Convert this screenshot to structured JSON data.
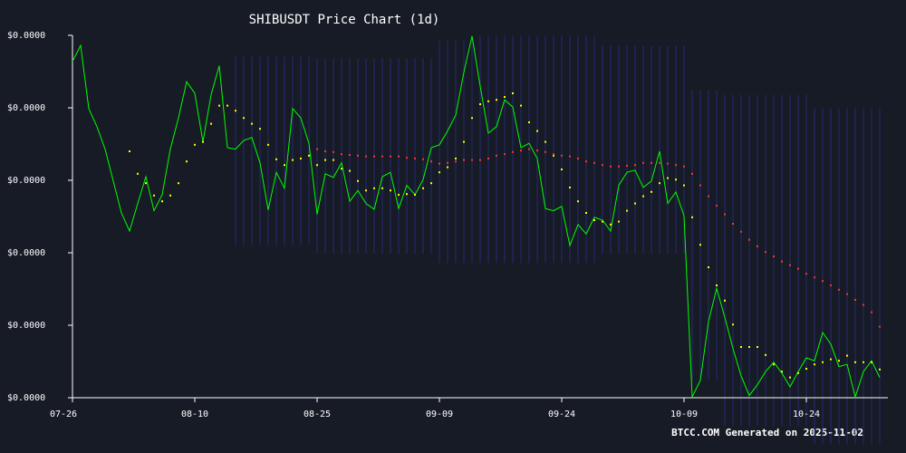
{
  "chart_data": {
    "type": "line",
    "title": "SHIBUSDT Price Chart (1d)",
    "footer": "BTCC.COM Generated on 2025-11-02",
    "categories": [
      "07-26",
      null,
      null,
      null,
      null,
      null,
      null,
      null,
      null,
      null,
      null,
      null,
      null,
      null,
      null,
      "08-10",
      null,
      null,
      null,
      null,
      null,
      null,
      null,
      null,
      null,
      null,
      null,
      null,
      null,
      null,
      "08-25",
      null,
      null,
      null,
      null,
      null,
      null,
      null,
      null,
      null,
      null,
      null,
      null,
      null,
      null,
      "09-09",
      null,
      null,
      null,
      null,
      null,
      null,
      null,
      null,
      null,
      null,
      null,
      null,
      null,
      null,
      "09-24",
      null,
      null,
      null,
      null,
      null,
      null,
      null,
      null,
      null,
      null,
      null,
      null,
      null,
      null,
      "10-09",
      null,
      null,
      null,
      null,
      null,
      null,
      null,
      null,
      null,
      null,
      null,
      null,
      null,
      null,
      "10-24",
      null,
      null,
      null,
      null,
      null,
      null,
      null,
      null,
      null
    ],
    "ylim": [
      1e-05,
      1.5e-05
    ],
    "yticks": [
      {
        "value": 1e-05,
        "label": "$0.0000"
      },
      {
        "value": 1.1e-05,
        "label": "$0.0000"
      },
      {
        "value": 1.2e-05,
        "label": "$0.0000"
      },
      {
        "value": 1.3e-05,
        "label": "$0.0000"
      },
      {
        "value": 1.4e-05,
        "label": "$0.0000"
      },
      {
        "value": 1.5e-05,
        "label": "$0.0000"
      }
    ],
    "background": "#171b26",
    "band": {
      "color": "#2b2f8f",
      "upper": [
        null,
        null,
        null,
        null,
        null,
        null,
        null,
        null,
        null,
        null,
        null,
        null,
        null,
        null,
        null,
        null,
        null,
        null,
        null,
        null,
        1.471e-05,
        1.471e-05,
        1.471e-05,
        1.471e-05,
        1.471e-05,
        1.471e-05,
        1.471e-05,
        1.471e-05,
        1.471e-05,
        1.471e-05,
        1.468e-05,
        1.468e-05,
        1.468e-05,
        1.468e-05,
        1.468e-05,
        1.468e-05,
        1.468e-05,
        1.468e-05,
        1.468e-05,
        1.468e-05,
        1.468e-05,
        1.468e-05,
        1.468e-05,
        1.468e-05,
        1.468e-05,
        1.493e-05,
        1.493e-05,
        1.493e-05,
        1.493e-05,
        1.493e-05,
        1.499e-05,
        1.499e-05,
        1.499e-05,
        1.499e-05,
        1.499e-05,
        1.499e-05,
        1.499e-05,
        1.499e-05,
        1.499e-05,
        1.499e-05,
        1.499e-05,
        1.499e-05,
        1.499e-05,
        1.499e-05,
        1.499e-05,
        1.486e-05,
        1.486e-05,
        1.486e-05,
        1.486e-05,
        1.486e-05,
        1.486e-05,
        1.486e-05,
        1.486e-05,
        1.486e-05,
        1.486e-05,
        1.486e-05,
        1.424e-05,
        1.424e-05,
        1.424e-05,
        1.424e-05,
        1.418e-05,
        1.418e-05,
        1.418e-05,
        1.418e-05,
        1.418e-05,
        1.418e-05,
        1.418e-05,
        1.418e-05,
        1.418e-05,
        1.418e-05,
        1.418e-05,
        1.399e-05,
        1.399e-05,
        1.399e-05,
        1.399e-05,
        1.399e-05,
        1.399e-05,
        1.399e-05,
        1.399e-05,
        1.399e-05
      ],
      "lower": [
        null,
        null,
        null,
        null,
        null,
        null,
        null,
        null,
        null,
        null,
        null,
        null,
        null,
        null,
        null,
        null,
        null,
        null,
        null,
        null,
        1.211e-05,
        1.211e-05,
        1.211e-05,
        1.211e-05,
        1.211e-05,
        1.211e-05,
        1.211e-05,
        1.211e-05,
        1.211e-05,
        1.211e-05,
        1.199e-05,
        1.199e-05,
        1.199e-05,
        1.199e-05,
        1.199e-05,
        1.199e-05,
        1.199e-05,
        1.199e-05,
        1.199e-05,
        1.199e-05,
        1.199e-05,
        1.199e-05,
        1.199e-05,
        1.199e-05,
        1.199e-05,
        1.186e-05,
        1.186e-05,
        1.186e-05,
        1.186e-05,
        1.186e-05,
        1.186e-05,
        1.186e-05,
        1.186e-05,
        1.186e-05,
        1.186e-05,
        1.186e-05,
        1.186e-05,
        1.186e-05,
        1.186e-05,
        1.186e-05,
        1.186e-05,
        1.186e-05,
        1.186e-05,
        1.186e-05,
        1.186e-05,
        1.199e-05,
        1.199e-05,
        1.199e-05,
        1.199e-05,
        1.199e-05,
        1.199e-05,
        1.199e-05,
        1.199e-05,
        1.199e-05,
        1.199e-05,
        1.199e-05,
        1.024e-05,
        1.024e-05,
        1.024e-05,
        1.024e-05,
        9.61e-06,
        9.61e-06,
        9.61e-06,
        9.61e-06,
        9.61e-06,
        9.61e-06,
        9.61e-06,
        9.61e-06,
        9.61e-06,
        9.61e-06,
        9.61e-06,
        9.36e-06,
        9.36e-06,
        9.36e-06,
        9.36e-06,
        9.36e-06,
        9.36e-06,
        9.36e-06,
        9.36e-06,
        9.36e-06
      ]
    },
    "series": [
      {
        "color": "#00ff00",
        "style": "line",
        "values": [
          1.464e-05,
          1.486e-05,
          1.399e-05,
          1.374e-05,
          1.343e-05,
          1.299e-05,
          1.255e-05,
          1.23e-05,
          1.268e-05,
          1.305e-05,
          1.258e-05,
          1.28e-05,
          1.343e-05,
          1.386e-05,
          1.436e-05,
          1.42e-05,
          1.353e-05,
          1.418e-05,
          1.458e-05,
          1.345e-05,
          1.343e-05,
          1.355e-05,
          1.359e-05,
          1.324e-05,
          1.259e-05,
          1.311e-05,
          1.289e-05,
          1.399e-05,
          1.386e-05,
          1.351e-05,
          1.253e-05,
          1.309e-05,
          1.304e-05,
          1.324e-05,
          1.271e-05,
          1.286e-05,
          1.268e-05,
          1.26e-05,
          1.305e-05,
          1.311e-05,
          1.261e-05,
          1.293e-05,
          1.28e-05,
          1.301e-05,
          1.345e-05,
          1.349e-05,
          1.368e-05,
          1.39e-05,
          1.449e-05,
          1.499e-05,
          1.43e-05,
          1.365e-05,
          1.374e-05,
          1.411e-05,
          1.401e-05,
          1.345e-05,
          1.351e-05,
          1.33e-05,
          1.261e-05,
          1.258e-05,
          1.264e-05,
          1.21e-05,
          1.239e-05,
          1.226e-05,
          1.249e-05,
          1.245e-05,
          1.23e-05,
          1.293e-05,
          1.311e-05,
          1.314e-05,
          1.29e-05,
          1.299e-05,
          1.34e-05,
          1.268e-05,
          1.284e-05,
          1.251e-05,
          1.001e-05,
          1.024e-05,
          1.105e-05,
          1.151e-05,
          1.111e-05,
          1.068e-05,
          1.03e-05,
          1.003e-05,
          1.018e-05,
          1.036e-05,
          1.049e-05,
          1.034e-05,
          1.015e-05,
          1.036e-05,
          1.055e-05,
          1.051e-05,
          1.09e-05,
          1.074e-05,
          1.043e-05,
          1.046e-05,
          1.001e-05,
          1.036e-05,
          1.051e-05,
          1.028e-05
        ]
      },
      {
        "color": "#ffff00",
        "style": "dots",
        "values": [
          null,
          null,
          null,
          null,
          null,
          null,
          null,
          1.34e-05,
          1.309e-05,
          1.296e-05,
          1.279e-05,
          1.271e-05,
          1.279e-05,
          1.296e-05,
          1.326e-05,
          1.349e-05,
          1.353e-05,
          1.378e-05,
          1.403e-05,
          1.403e-05,
          1.396e-05,
          1.386e-05,
          1.378e-05,
          1.371e-05,
          1.349e-05,
          1.329e-05,
          1.321e-05,
          1.328e-05,
          1.33e-05,
          1.334e-05,
          1.321e-05,
          1.328e-05,
          1.328e-05,
          1.316e-05,
          1.313e-05,
          1.299e-05,
          1.286e-05,
          1.289e-05,
          1.289e-05,
          1.286e-05,
          1.28e-05,
          1.281e-05,
          1.28e-05,
          1.289e-05,
          1.296e-05,
          1.311e-05,
          1.318e-05,
          1.33e-05,
          1.353e-05,
          1.386e-05,
          1.405e-05,
          1.409e-05,
          1.411e-05,
          1.415e-05,
          1.42e-05,
          1.403e-05,
          1.38e-05,
          1.368e-05,
          1.353e-05,
          1.334e-05,
          1.315e-05,
          1.29e-05,
          1.271e-05,
          1.255e-05,
          1.245e-05,
          1.243e-05,
          1.239e-05,
          1.243e-05,
          1.258e-05,
          1.268e-05,
          1.278e-05,
          1.284e-05,
          1.296e-05,
          1.303e-05,
          1.301e-05,
          1.293e-05,
          1.249e-05,
          1.211e-05,
          1.18e-05,
          1.155e-05,
          1.134e-05,
          1.101e-05,
          1.07e-05,
          1.07e-05,
          1.07e-05,
          1.059e-05,
          1.046e-05,
          1.036e-05,
          1.028e-05,
          1.034e-05,
          1.04e-05,
          1.046e-05,
          1.049e-05,
          1.053e-05,
          1.051e-05,
          1.058e-05,
          1.049e-05,
          1.049e-05,
          1.049e-05,
          1.039e-05
        ]
      },
      {
        "color": "#ff3333",
        "style": "dots",
        "values": [
          null,
          null,
          null,
          null,
          null,
          null,
          null,
          null,
          null,
          null,
          null,
          null,
          null,
          null,
          null,
          null,
          null,
          null,
          null,
          null,
          null,
          null,
          null,
          null,
          null,
          null,
          null,
          null,
          null,
          null,
          1.343e-05,
          1.34e-05,
          1.339e-05,
          1.336e-05,
          1.335e-05,
          1.334e-05,
          1.333e-05,
          1.333e-05,
          1.333e-05,
          1.333e-05,
          1.333e-05,
          1.331e-05,
          1.33e-05,
          1.329e-05,
          1.326e-05,
          1.323e-05,
          1.324e-05,
          1.326e-05,
          1.328e-05,
          1.328e-05,
          1.328e-05,
          1.33e-05,
          1.334e-05,
          1.336e-05,
          1.339e-05,
          1.341e-05,
          1.343e-05,
          1.341e-05,
          1.339e-05,
          1.336e-05,
          1.334e-05,
          1.333e-05,
          1.33e-05,
          1.326e-05,
          1.324e-05,
          1.321e-05,
          1.319e-05,
          1.319e-05,
          1.32e-05,
          1.321e-05,
          1.324e-05,
          1.324e-05,
          1.324e-05,
          1.323e-05,
          1.321e-05,
          1.319e-05,
          1.309e-05,
          1.293e-05,
          1.278e-05,
          1.265e-05,
          1.253e-05,
          1.24e-05,
          1.229e-05,
          1.218e-05,
          1.209e-05,
          1.201e-05,
          1.195e-05,
          1.188e-05,
          1.183e-05,
          1.178e-05,
          1.171e-05,
          1.166e-05,
          1.161e-05,
          1.155e-05,
          1.149e-05,
          1.143e-05,
          1.135e-05,
          1.128e-05,
          1.118e-05,
          1.098e-05
        ]
      }
    ]
  }
}
